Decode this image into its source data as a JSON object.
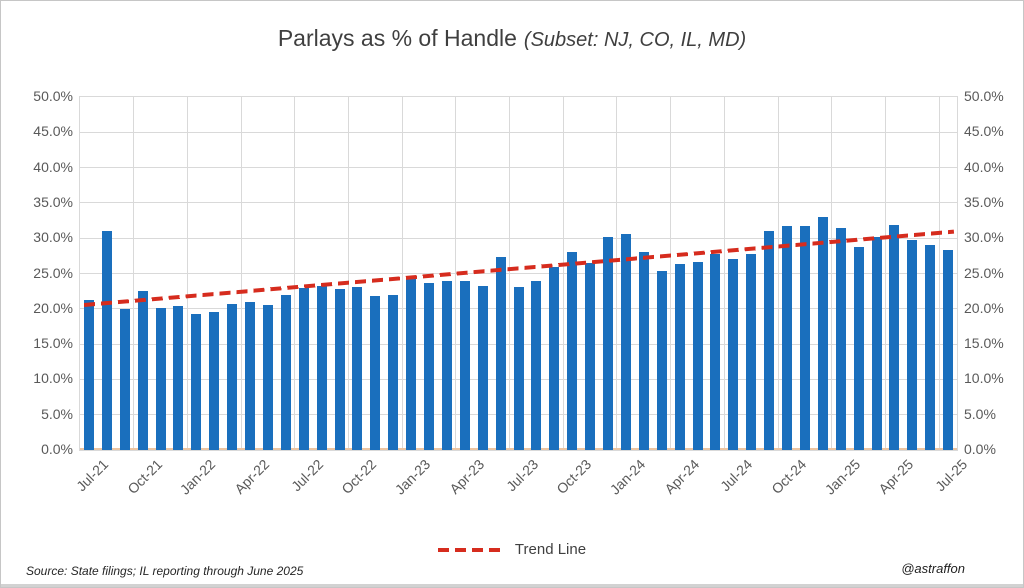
{
  "title": {
    "main": "Parlays as % of Handle",
    "subset": "(Subset: NJ, CO, IL, MD)"
  },
  "legend": {
    "trend_label": "Trend Line"
  },
  "footer": {
    "source": "Source: State filings; IL reporting through June 2025",
    "handle": "@astraffon"
  },
  "colors": {
    "bar": "#1a6fbd",
    "trend": "#d62c1e",
    "gridline": "#d9d9d9",
    "axis_text": "#595959",
    "title_text": "#3f3f3f",
    "baseline": "#ecc5a2"
  },
  "chart_data": {
    "type": "bar",
    "title": "Parlays as % of Handle (Subset: NJ, CO, IL, MD)",
    "xlabel": "",
    "ylabel": "",
    "ylim": [
      0,
      50
    ],
    "ytick_step": 5,
    "ytick_format": "0.0%",
    "grid": true,
    "legend_position": "bottom",
    "x_tick_every": 3,
    "categories": [
      "Jul-21",
      "Aug-21",
      "Sep-21",
      "Oct-21",
      "Nov-21",
      "Dec-21",
      "Jan-22",
      "Feb-22",
      "Mar-22",
      "Apr-22",
      "May-22",
      "Jun-22",
      "Jul-22",
      "Aug-22",
      "Sep-22",
      "Oct-22",
      "Nov-22",
      "Dec-22",
      "Jan-23",
      "Feb-23",
      "Mar-23",
      "Apr-23",
      "May-23",
      "Jun-23",
      "Jul-23",
      "Aug-23",
      "Sep-23",
      "Oct-23",
      "Nov-23",
      "Dec-23",
      "Jan-24",
      "Feb-24",
      "Mar-24",
      "Apr-24",
      "May-24",
      "Jun-24",
      "Jul-24",
      "Aug-24",
      "Sep-24",
      "Oct-24",
      "Nov-24",
      "Dec-24",
      "Jan-25",
      "Feb-25",
      "Mar-25",
      "Apr-25",
      "May-25",
      "Jun-25",
      "Jul-25"
    ],
    "values": [
      21.3,
      31.0,
      20.0,
      22.5,
      20.1,
      20.4,
      19.2,
      19.5,
      20.7,
      20.9,
      20.6,
      21.9,
      23.0,
      23.2,
      22.8,
      23.1,
      21.8,
      21.9,
      24.3,
      23.6,
      24.0,
      23.9,
      23.2,
      27.4,
      23.1,
      23.9,
      25.9,
      28.1,
      26.5,
      30.2,
      30.6,
      28.1,
      25.3,
      26.4,
      26.6,
      27.8,
      27.1,
      27.7,
      31.0,
      31.7,
      31.8,
      33.0,
      31.4,
      28.7,
      30.2,
      31.9,
      29.7,
      29.1,
      28.3
    ],
    "trend": {
      "name": "Trend Line",
      "style": "dashed",
      "color": "#d62c1e",
      "start_value": 20.6,
      "end_value": 31.0
    }
  }
}
